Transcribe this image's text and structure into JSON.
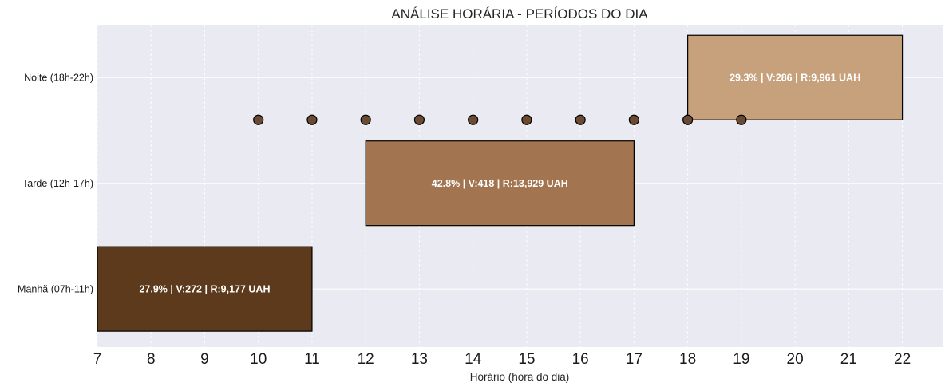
{
  "chart_data": {
    "type": "bar",
    "orientation": "horizontal",
    "title": "ANÁLISE HORÁRIA - PERÍODOS DO DIA",
    "xlabel": "Horário (hora do dia)",
    "ylabel": "",
    "xlim": [
      7,
      22.75
    ],
    "xticks": [
      "7",
      "8",
      "9",
      "10",
      "11",
      "12",
      "13",
      "14",
      "15",
      "16",
      "17",
      "18",
      "19",
      "20",
      "21",
      "22"
    ],
    "grid": true,
    "categories": [
      "Manhã (07h-11h)",
      "Tarde (12h-17h)",
      "Noite (18h-22h)"
    ],
    "bars": [
      {
        "category": "Manhã (07h-11h)",
        "start": 7,
        "end": 11,
        "label": "27.9% | V:272 | R:9,177 UAH",
        "color": "#5c3a1b"
      },
      {
        "category": "Tarde (12h-17h)",
        "start": 12,
        "end": 17,
        "label": "42.8% | V:418 | R:13,929 UAH",
        "color": "#a27550"
      },
      {
        "category": "Noite (18h-22h)",
        "start": 18,
        "end": 22,
        "label": "29.3% | V:286 | R:9,961 UAH",
        "color": "#c6a17c"
      }
    ],
    "markers": {
      "hours": [
        10,
        11,
        12,
        13,
        14,
        15,
        16,
        17,
        18,
        19
      ],
      "level": 1.6,
      "color": "#6b4a33"
    }
  }
}
